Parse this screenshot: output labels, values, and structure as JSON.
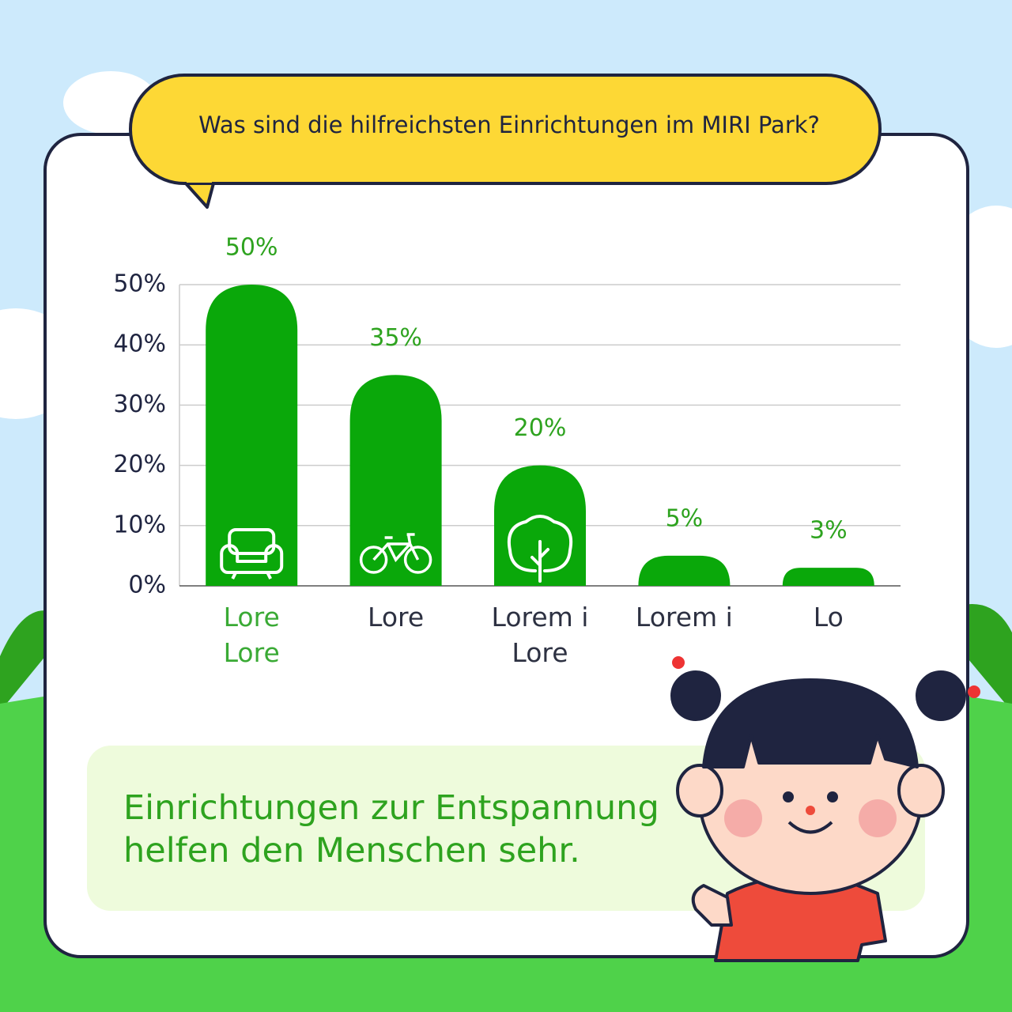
{
  "chart_data": {
    "type": "bar",
    "title": "Was sind die hilfreichsten Einrichtungen im MIRI Park?",
    "categories": [
      "Lore Lore",
      "Lore",
      "Lorem i Lore",
      "Lorem i",
      "Lo"
    ],
    "category_colors": [
      "#3aaa35",
      "#2d3142",
      "#2d3142",
      "#2d3142",
      "#2d3142"
    ],
    "values": [
      50,
      35,
      20,
      5,
      3
    ],
    "value_labels": [
      "50%",
      "35%",
      "20%",
      "5%",
      "3%"
    ],
    "color": "#0aa80a",
    "ylim": [
      0,
      50
    ],
    "yticks": [
      {
        "value": 0,
        "label": "0%"
      },
      {
        "value": 10,
        "label": "10%"
      },
      {
        "value": 20,
        "label": "20%"
      },
      {
        "value": 30,
        "label": "30%"
      },
      {
        "value": 40,
        "label": "40%"
      },
      {
        "value": 50,
        "label": "50%"
      }
    ],
    "grid": true,
    "caption": "Einrichtungen zur Entspannung helfen den Menschen sehr."
  }
}
